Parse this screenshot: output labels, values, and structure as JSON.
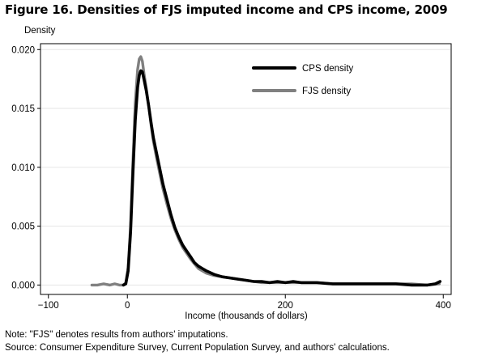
{
  "figure": {
    "title": "Figure 16. Densities of FJS imputed income and CPS income, 2009",
    "note": "Note: \"FJS\" denotes results from authors' imputations.",
    "source": "Source: Consumer Expenditure Survey, Current Population Survey, and authors' calculations."
  },
  "chart_data": {
    "type": "line",
    "title": "Figure 16. Densities of FJS imputed income and CPS income, 2009",
    "xlabel": "Income (thousands of dollars)",
    "ylabel": "Density",
    "xlim": [
      -110,
      410
    ],
    "ylim": [
      -0.0008,
      0.0205
    ],
    "x_ticks": [
      -100,
      0,
      200,
      400
    ],
    "x_tick_labels": [
      "−100",
      "0",
      "200",
      "400"
    ],
    "y_ticks": [
      0.0,
      0.005,
      0.01,
      0.015,
      0.02
    ],
    "y_tick_labels": [
      "0.000",
      "0.005",
      "0.010",
      "0.015",
      "0.020"
    ],
    "grid": "horizontal",
    "legend_position": "top-right",
    "colors": {
      "cps": "#000000",
      "fjs": "#808080",
      "grid": "#e6e6e6",
      "frame": "#000000"
    },
    "series": [
      {
        "name": "CPS density",
        "color": "#000000",
        "points": [
          [
            -5,
            0.0
          ],
          [
            -2,
            0.0001
          ],
          [
            1,
            0.0012
          ],
          [
            4,
            0.0045
          ],
          [
            7,
            0.0095
          ],
          [
            10,
            0.014
          ],
          [
            13,
            0.0168
          ],
          [
            15,
            0.0178
          ],
          [
            17,
            0.0182
          ],
          [
            19,
            0.0181
          ],
          [
            21,
            0.0175
          ],
          [
            24,
            0.0165
          ],
          [
            27,
            0.0152
          ],
          [
            30,
            0.0138
          ],
          [
            33,
            0.0125
          ],
          [
            37,
            0.0112
          ],
          [
            41,
            0.0099
          ],
          [
            45,
            0.0086
          ],
          [
            50,
            0.0073
          ],
          [
            55,
            0.006
          ],
          [
            60,
            0.0049
          ],
          [
            65,
            0.0041
          ],
          [
            70,
            0.0034
          ],
          [
            75,
            0.0029
          ],
          [
            80,
            0.0024
          ],
          [
            85,
            0.0019
          ],
          [
            90,
            0.0016
          ],
          [
            95,
            0.0014
          ],
          [
            100,
            0.0012
          ],
          [
            110,
            0.0009
          ],
          [
            120,
            0.0007
          ],
          [
            130,
            0.0006
          ],
          [
            140,
            0.0005
          ],
          [
            150,
            0.0004
          ],
          [
            160,
            0.0003
          ],
          [
            170,
            0.0003
          ],
          [
            180,
            0.0002
          ],
          [
            190,
            0.0003
          ],
          [
            200,
            0.0002
          ],
          [
            210,
            0.0003
          ],
          [
            220,
            0.0002
          ],
          [
            240,
            0.0002
          ],
          [
            260,
            0.0001
          ],
          [
            280,
            0.0001
          ],
          [
            300,
            0.0001
          ],
          [
            320,
            0.0001
          ],
          [
            340,
            0.0001
          ],
          [
            360,
            0.0
          ],
          [
            380,
            0.0
          ],
          [
            390,
            0.0001
          ],
          [
            396,
            0.0003
          ]
        ]
      },
      {
        "name": "FJS density",
        "color": "#808080",
        "points": [
          [
            -45,
            0.0
          ],
          [
            -38,
            0.0
          ],
          [
            -30,
            0.0001
          ],
          [
            -22,
            0.0
          ],
          [
            -16,
            0.0001
          ],
          [
            -10,
            0.0
          ],
          [
            -5,
            0.0
          ],
          [
            -2,
            0.0002
          ],
          [
            1,
            0.0015
          ],
          [
            4,
            0.005
          ],
          [
            7,
            0.0105
          ],
          [
            10,
            0.0155
          ],
          [
            13,
            0.0183
          ],
          [
            15,
            0.0192
          ],
          [
            17,
            0.0194
          ],
          [
            19,
            0.019
          ],
          [
            21,
            0.018
          ],
          [
            24,
            0.0167
          ],
          [
            27,
            0.0152
          ],
          [
            30,
            0.0136
          ],
          [
            33,
            0.0122
          ],
          [
            37,
            0.0108
          ],
          [
            41,
            0.0095
          ],
          [
            45,
            0.0082
          ],
          [
            50,
            0.0069
          ],
          [
            55,
            0.0057
          ],
          [
            60,
            0.0047
          ],
          [
            65,
            0.0039
          ],
          [
            70,
            0.0032
          ],
          [
            75,
            0.0027
          ],
          [
            80,
            0.0022
          ],
          [
            85,
            0.0018
          ],
          [
            90,
            0.0014
          ],
          [
            95,
            0.0012
          ],
          [
            100,
            0.001
          ],
          [
            110,
            0.0008
          ],
          [
            120,
            0.0007
          ],
          [
            130,
            0.0006
          ],
          [
            140,
            0.0005
          ],
          [
            150,
            0.0004
          ],
          [
            160,
            0.0003
          ],
          [
            170,
            0.0002
          ],
          [
            180,
            0.0002
          ],
          [
            200,
            0.0002
          ],
          [
            220,
            0.0002
          ],
          [
            240,
            0.0002
          ],
          [
            260,
            0.0001
          ],
          [
            280,
            0.0001
          ],
          [
            300,
            0.0001
          ],
          [
            320,
            0.0001
          ],
          [
            340,
            0.0001
          ],
          [
            360,
            0.0001
          ],
          [
            380,
            0.0
          ],
          [
            395,
            0.0001
          ]
        ]
      }
    ]
  }
}
